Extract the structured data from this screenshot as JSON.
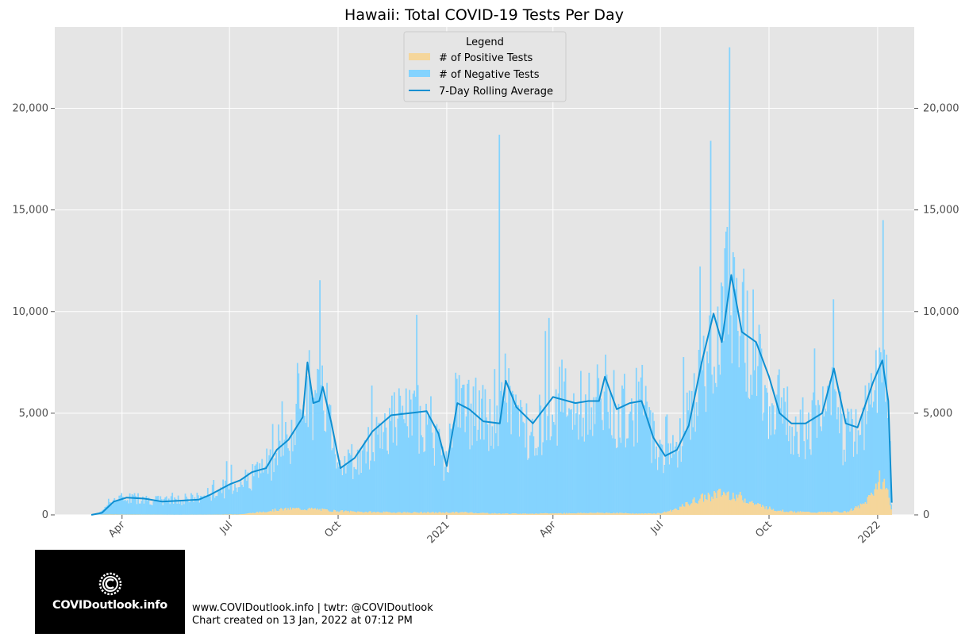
{
  "chart_data": {
    "type": "bar",
    "title": "Hawaii: Total COVID-19 Tests Per Day",
    "xlabel": "",
    "ylabel": "",
    "ylim": [
      0,
      24000
    ],
    "yticks": [
      0,
      5000,
      10000,
      15000,
      20000
    ],
    "ytick_labels": [
      "0",
      "5,000",
      "10,000",
      "15,000",
      "20,000"
    ],
    "x_range": [
      "2020-02-04",
      "2022-02-01"
    ],
    "xticks": [
      {
        "date": "2020-04-01",
        "label": "Apr"
      },
      {
        "date": "2020-07-01",
        "label": "Jul"
      },
      {
        "date": "2020-10-01",
        "label": "Oct"
      },
      {
        "date": "2021-01-01",
        "label": "2021"
      },
      {
        "date": "2021-04-01",
        "label": "Apr"
      },
      {
        "date": "2021-07-01",
        "label": "Jul"
      },
      {
        "date": "2021-10-01",
        "label": "Oct"
      },
      {
        "date": "2022-01-01",
        "label": "2022"
      }
    ],
    "grid": true,
    "stacked": true,
    "legend": {
      "title": "Legend",
      "position": "top-center"
    },
    "series": [
      {
        "name": "# of Positive Tests",
        "kind": "bar",
        "color": "#f5d69b",
        "points": [
          [
            "2020-03-06",
            0
          ],
          [
            "2020-03-20",
            20
          ],
          [
            "2020-04-15",
            15
          ],
          [
            "2020-05-15",
            5
          ],
          [
            "2020-06-15",
            10
          ],
          [
            "2020-07-10",
            30
          ],
          [
            "2020-07-25",
            120
          ],
          [
            "2020-08-10",
            250
          ],
          [
            "2020-08-25",
            300
          ],
          [
            "2020-09-10",
            280
          ],
          [
            "2020-09-25",
            200
          ],
          [
            "2020-10-15",
            150
          ],
          [
            "2020-11-15",
            120
          ],
          [
            "2020-12-15",
            110
          ],
          [
            "2021-01-15",
            120
          ],
          [
            "2021-02-15",
            60
          ],
          [
            "2021-03-15",
            60
          ],
          [
            "2021-04-15",
            80
          ],
          [
            "2021-05-15",
            100
          ],
          [
            "2021-06-15",
            60
          ],
          [
            "2021-07-01",
            80
          ],
          [
            "2021-07-15",
            300
          ],
          [
            "2021-07-30",
            700
          ],
          [
            "2021-08-15",
            1000
          ],
          [
            "2021-08-25",
            1050
          ],
          [
            "2021-09-05",
            900
          ],
          [
            "2021-09-20",
            500
          ],
          [
            "2021-10-05",
            250
          ],
          [
            "2021-10-20",
            150
          ],
          [
            "2021-11-10",
            120
          ],
          [
            "2021-12-05",
            150
          ],
          [
            "2021-12-20",
            500
          ],
          [
            "2021-12-28",
            1200
          ],
          [
            "2022-01-03",
            1800
          ],
          [
            "2022-01-08",
            1300
          ],
          [
            "2022-01-12",
            300
          ]
        ]
      },
      {
        "name": "# of Negative Tests",
        "kind": "bar",
        "color": "#84d3fe",
        "points": [
          [
            "2020-03-06",
            0
          ],
          [
            "2020-03-12",
            50
          ],
          [
            "2020-03-20",
            600
          ],
          [
            "2020-03-28",
            800
          ],
          [
            "2020-04-15",
            850
          ],
          [
            "2020-05-01",
            700
          ],
          [
            "2020-05-20",
            750
          ],
          [
            "2020-06-05",
            850
          ],
          [
            "2020-06-20",
            1200
          ],
          [
            "2020-07-05",
            1500
          ],
          [
            "2020-07-20",
            1900
          ],
          [
            "2020-08-05",
            2500
          ],
          [
            "2020-08-15",
            3200
          ],
          [
            "2020-08-25",
            3800
          ],
          [
            "2020-09-02",
            6800
          ],
          [
            "2020-09-10",
            5000
          ],
          [
            "2020-09-18",
            6000
          ],
          [
            "2020-09-28",
            3200
          ],
          [
            "2020-10-05",
            2500
          ],
          [
            "2020-10-20",
            2600
          ],
          [
            "2020-11-01",
            3800
          ],
          [
            "2020-11-15",
            4600
          ],
          [
            "2020-12-01",
            4800
          ],
          [
            "2020-12-15",
            4900
          ],
          [
            "2020-12-30",
            2200
          ],
          [
            "2021-01-10",
            5400
          ],
          [
            "2021-01-25",
            5000
          ],
          [
            "2021-02-10",
            4300
          ],
          [
            "2021-02-20",
            6300
          ],
          [
            "2021-03-05",
            4300
          ],
          [
            "2021-03-20",
            4500
          ],
          [
            "2021-04-05",
            5500
          ],
          [
            "2021-04-20",
            5100
          ],
          [
            "2021-05-05",
            5500
          ],
          [
            "2021-05-15",
            5800
          ],
          [
            "2021-05-25",
            5000
          ],
          [
            "2021-06-15",
            5500
          ],
          [
            "2021-06-25",
            3800
          ],
          [
            "2021-07-01",
            2900
          ],
          [
            "2021-07-15",
            3200
          ],
          [
            "2021-07-30",
            5200
          ],
          [
            "2021-08-10",
            7000
          ],
          [
            "2021-08-20",
            8800
          ],
          [
            "2021-08-30",
            11000
          ],
          [
            "2021-09-08",
            8800
          ],
          [
            "2021-09-20",
            7700
          ],
          [
            "2021-10-01",
            5500
          ],
          [
            "2021-10-15",
            4700
          ],
          [
            "2021-11-01",
            4300
          ],
          [
            "2021-11-10",
            4500
          ],
          [
            "2021-11-20",
            6000
          ],
          [
            "2021-12-01",
            3800
          ],
          [
            "2021-12-15",
            3800
          ],
          [
            "2021-12-28",
            4800
          ],
          [
            "2022-01-05",
            5500
          ],
          [
            "2022-01-10",
            4500
          ],
          [
            "2022-01-12",
            300
          ]
        ]
      },
      {
        "name": "7-Day Rolling Average",
        "kind": "line",
        "color": "#0f8fd1",
        "points": [
          [
            "2020-03-06",
            0
          ],
          [
            "2020-03-15",
            100
          ],
          [
            "2020-03-25",
            650
          ],
          [
            "2020-04-05",
            850
          ],
          [
            "2020-04-20",
            800
          ],
          [
            "2020-05-05",
            650
          ],
          [
            "2020-05-20",
            700
          ],
          [
            "2020-06-05",
            750
          ],
          [
            "2020-06-15",
            1000
          ],
          [
            "2020-07-01",
            1500
          ],
          [
            "2020-07-10",
            1700
          ],
          [
            "2020-07-20",
            2100
          ],
          [
            "2020-08-01",
            2300
          ],
          [
            "2020-08-10",
            3200
          ],
          [
            "2020-08-20",
            3700
          ],
          [
            "2020-09-01",
            4800
          ],
          [
            "2020-09-05",
            7500
          ],
          [
            "2020-09-10",
            5500
          ],
          [
            "2020-09-15",
            5600
          ],
          [
            "2020-09-18",
            6300
          ],
          [
            "2020-09-25",
            4600
          ],
          [
            "2020-10-03",
            2300
          ],
          [
            "2020-10-15",
            2800
          ],
          [
            "2020-10-30",
            4100
          ],
          [
            "2020-11-15",
            4900
          ],
          [
            "2020-11-30",
            5000
          ],
          [
            "2020-12-15",
            5100
          ],
          [
            "2020-12-25",
            4000
          ],
          [
            "2021-01-01",
            2400
          ],
          [
            "2021-01-10",
            5500
          ],
          [
            "2021-01-20",
            5200
          ],
          [
            "2021-02-01",
            4600
          ],
          [
            "2021-02-15",
            4500
          ],
          [
            "2021-02-20",
            6600
          ],
          [
            "2021-03-01",
            5300
          ],
          [
            "2021-03-15",
            4500
          ],
          [
            "2021-04-01",
            5800
          ],
          [
            "2021-04-20",
            5500
          ],
          [
            "2021-05-01",
            5600
          ],
          [
            "2021-05-10",
            5600
          ],
          [
            "2021-05-15",
            6800
          ],
          [
            "2021-05-25",
            5200
          ],
          [
            "2021-06-05",
            5500
          ],
          [
            "2021-06-15",
            5600
          ],
          [
            "2021-06-25",
            3800
          ],
          [
            "2021-07-05",
            2900
          ],
          [
            "2021-07-15",
            3200
          ],
          [
            "2021-07-25",
            4400
          ],
          [
            "2021-08-05",
            7500
          ],
          [
            "2021-08-15",
            9900
          ],
          [
            "2021-08-22",
            8500
          ],
          [
            "2021-08-30",
            11800
          ],
          [
            "2021-09-08",
            9000
          ],
          [
            "2021-09-20",
            8500
          ],
          [
            "2021-10-01",
            6800
          ],
          [
            "2021-10-10",
            5000
          ],
          [
            "2021-10-20",
            4500
          ],
          [
            "2021-11-01",
            4500
          ],
          [
            "2021-11-15",
            5000
          ],
          [
            "2021-11-25",
            7200
          ],
          [
            "2021-12-05",
            4500
          ],
          [
            "2021-12-15",
            4300
          ],
          [
            "2021-12-28",
            6500
          ],
          [
            "2022-01-05",
            7600
          ],
          [
            "2022-01-10",
            5600
          ],
          [
            "2022-01-13",
            600
          ]
        ],
        "spikes": [
          [
            "2021-02-14",
            18700
          ],
          [
            "2021-08-28",
            23000
          ],
          [
            "2021-08-12",
            18400
          ],
          [
            "2022-01-05",
            14500
          ]
        ]
      }
    ]
  },
  "logo": {
    "text": "COVIDoutlook.info"
  },
  "footer": {
    "line1": "www.COVIDoutlook.info | twtr: @COVIDoutlook",
    "line2": "Chart created on 13 Jan, 2022 at 07:12 PM"
  }
}
